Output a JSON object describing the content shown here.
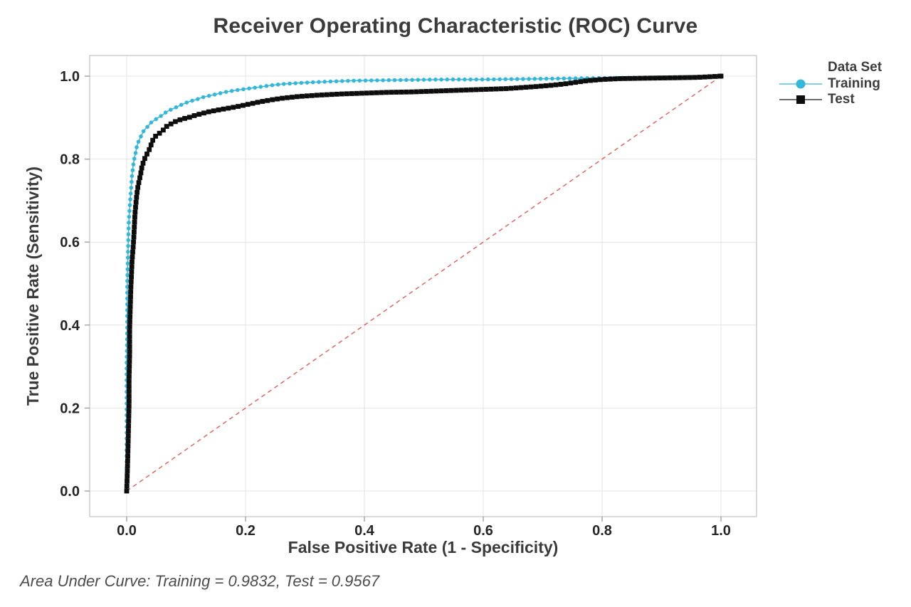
{
  "title": "Receiver Operating Characteristic (ROC) Curve",
  "footer_note": "Area Under Curve: Training = 0.9832, Test = 0.9567",
  "legend": {
    "title": "Data Set",
    "items": [
      {
        "label": "Training",
        "marker": "circle",
        "color": "#35b7d9",
        "line_color": "#7fd2e6"
      },
      {
        "label": "Test",
        "marker": "square",
        "color": "#0d0d0d",
        "line_color": "#6e6e6e"
      }
    ]
  },
  "colors": {
    "training": "#35b7d9",
    "test": "#0d0d0d",
    "diagonal": "#e25c5c",
    "gridline": "#e4e4e4",
    "plot_border": "#c6c6c6",
    "tick_mark": "#9a9a9a",
    "tick_label": "#262626",
    "text": "#3b3b3b"
  },
  "chart_data": {
    "type": "line",
    "title": "Receiver Operating Characteristic (ROC) Curve",
    "xlabel": "False Positive Rate (1 - Specificity)",
    "ylabel": "True Positive Rate (Sensitivity)",
    "xlim": [
      -0.06,
      1.06
    ],
    "ylim": [
      -0.06,
      1.06
    ],
    "x_ticks": [
      0.0,
      0.2,
      0.4,
      0.6,
      0.8,
      1.0
    ],
    "y_ticks": [
      0.0,
      0.2,
      0.4,
      0.6,
      0.8,
      1.0
    ],
    "grid": true,
    "legend_position": "right-top",
    "legend_title": "Data Set",
    "annotations": [
      "Area Under Curve: Training = 0.9832, Test = 0.9567"
    ],
    "reference_line": {
      "from": [
        0,
        0
      ],
      "to": [
        1,
        1
      ],
      "style": "dashed",
      "color": "#e25c5c"
    },
    "series": [
      {
        "name": "Training",
        "auc": 0.9832,
        "color": "#35b7d9",
        "marker": "circle",
        "points": [
          [
            0.0,
            0.0
          ],
          [
            0.0,
            0.05
          ],
          [
            0.0,
            0.12
          ],
          [
            0.0,
            0.2
          ],
          [
            0.0,
            0.3
          ],
          [
            0.001,
            0.4
          ],
          [
            0.001,
            0.47
          ],
          [
            0.001,
            0.503
          ],
          [
            0.002,
            0.56
          ],
          [
            0.003,
            0.62
          ],
          [
            0.004,
            0.66
          ],
          [
            0.006,
            0.703
          ],
          [
            0.008,
            0.74
          ],
          [
            0.009,
            0.762
          ],
          [
            0.012,
            0.795
          ],
          [
            0.015,
            0.815
          ],
          [
            0.017,
            0.83
          ],
          [
            0.02,
            0.843
          ],
          [
            0.023,
            0.852
          ],
          [
            0.029,
            0.869
          ],
          [
            0.035,
            0.878
          ],
          [
            0.041,
            0.888
          ],
          [
            0.048,
            0.895
          ],
          [
            0.053,
            0.9
          ],
          [
            0.06,
            0.906
          ],
          [
            0.065,
            0.912
          ],
          [
            0.071,
            0.917
          ],
          [
            0.077,
            0.921
          ],
          [
            0.085,
            0.926
          ],
          [
            0.092,
            0.931
          ],
          [
            0.1,
            0.936
          ],
          [
            0.108,
            0.94
          ],
          [
            0.118,
            0.944
          ],
          [
            0.128,
            0.949
          ],
          [
            0.14,
            0.953
          ],
          [
            0.152,
            0.957
          ],
          [
            0.167,
            0.962
          ],
          [
            0.184,
            0.966
          ],
          [
            0.204,
            0.97
          ],
          [
            0.224,
            0.974
          ],
          [
            0.244,
            0.978
          ],
          [
            0.263,
            0.981
          ],
          [
            0.285,
            0.983
          ],
          [
            0.31,
            0.985
          ],
          [
            0.34,
            0.987
          ],
          [
            0.38,
            0.989
          ],
          [
            0.43,
            0.99
          ],
          [
            0.48,
            0.991
          ],
          [
            0.54,
            0.992
          ],
          [
            0.6,
            0.992
          ],
          [
            0.66,
            0.993
          ],
          [
            0.72,
            0.994
          ],
          [
            0.78,
            0.995
          ],
          [
            0.84,
            0.996
          ],
          [
            0.896,
            0.997
          ],
          [
            0.95,
            0.998
          ],
          [
            1.0,
            1.0
          ]
        ]
      },
      {
        "name": "Test",
        "auc": 0.9567,
        "color": "#0d0d0d",
        "marker": "square",
        "points": [
          [
            0.0,
            0.0
          ],
          [
            0.001,
            0.04
          ],
          [
            0.002,
            0.09
          ],
          [
            0.003,
            0.15
          ],
          [
            0.004,
            0.21
          ],
          [
            0.004,
            0.27
          ],
          [
            0.005,
            0.33
          ],
          [
            0.005,
            0.39
          ],
          [
            0.006,
            0.44
          ],
          [
            0.007,
            0.49
          ],
          [
            0.008,
            0.52
          ],
          [
            0.009,
            0.555
          ],
          [
            0.011,
            0.59
          ],
          [
            0.012,
            0.612
          ],
          [
            0.013,
            0.64
          ],
          [
            0.014,
            0.669
          ],
          [
            0.016,
            0.7
          ],
          [
            0.018,
            0.726
          ],
          [
            0.021,
            0.748
          ],
          [
            0.023,
            0.76
          ],
          [
            0.026,
            0.784
          ],
          [
            0.03,
            0.8
          ],
          [
            0.032,
            0.806
          ],
          [
            0.036,
            0.818
          ],
          [
            0.038,
            0.823
          ],
          [
            0.042,
            0.838
          ],
          [
            0.044,
            0.846
          ],
          [
            0.05,
            0.858
          ],
          [
            0.056,
            0.863
          ],
          [
            0.059,
            0.866
          ],
          [
            0.064,
            0.874
          ],
          [
            0.068,
            0.88
          ],
          [
            0.076,
            0.886
          ],
          [
            0.084,
            0.892
          ],
          [
            0.094,
            0.897
          ],
          [
            0.104,
            0.9
          ],
          [
            0.114,
            0.905
          ],
          [
            0.124,
            0.909
          ],
          [
            0.138,
            0.914
          ],
          [
            0.152,
            0.918
          ],
          [
            0.168,
            0.922
          ],
          [
            0.184,
            0.926
          ],
          [
            0.204,
            0.932
          ],
          [
            0.224,
            0.938
          ],
          [
            0.244,
            0.943
          ],
          [
            0.263,
            0.947
          ],
          [
            0.29,
            0.951
          ],
          [
            0.32,
            0.954
          ],
          [
            0.36,
            0.957
          ],
          [
            0.4,
            0.959
          ],
          [
            0.44,
            0.961
          ],
          [
            0.48,
            0.962
          ],
          [
            0.52,
            0.964
          ],
          [
            0.56,
            0.966
          ],
          [
            0.6,
            0.968
          ],
          [
            0.64,
            0.97
          ],
          [
            0.66,
            0.972
          ],
          [
            0.69,
            0.975
          ],
          [
            0.715,
            0.978
          ],
          [
            0.735,
            0.981
          ],
          [
            0.755,
            0.985
          ],
          [
            0.775,
            0.989
          ],
          [
            0.8,
            0.992
          ],
          [
            0.83,
            0.994
          ],
          [
            0.87,
            0.995
          ],
          [
            0.92,
            0.996
          ],
          [
            0.96,
            0.997
          ],
          [
            1.0,
            1.0
          ]
        ]
      }
    ]
  }
}
